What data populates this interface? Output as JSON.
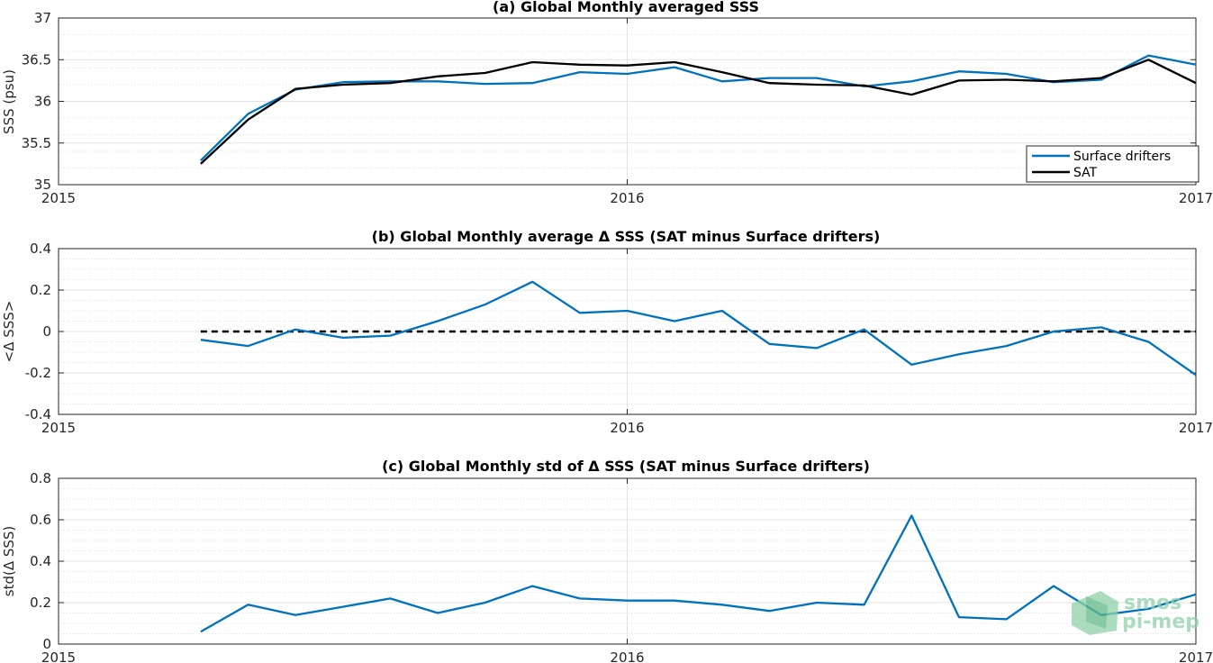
{
  "chart_data": [
    {
      "type": "line",
      "title": "(a) Global Monthly averaged SSS",
      "xlabel": "",
      "ylabel": "SSS (psu)",
      "x_ticks": [
        "2015",
        "2016",
        "2017"
      ],
      "y_ticks": [
        "35",
        "35.5",
        "36",
        "36.5",
        "37"
      ],
      "xlim": [
        "2015-01",
        "2017-01"
      ],
      "ylim": [
        35,
        37
      ],
      "grid": true,
      "legend_position": "bottom-right",
      "x": [
        "2015-04",
        "2015-05",
        "2015-06",
        "2015-07",
        "2015-08",
        "2015-09",
        "2015-10",
        "2015-11",
        "2015-12",
        "2016-01",
        "2016-02",
        "2016-03",
        "2016-04",
        "2016-05",
        "2016-06",
        "2016-07",
        "2016-08",
        "2016-09",
        "2016-10",
        "2016-11",
        "2016-12",
        "2017-01"
      ],
      "series": [
        {
          "name": "Surface drifters",
          "color": "#0072bd",
          "values": [
            35.29,
            35.85,
            36.14,
            36.23,
            36.24,
            36.24,
            36.21,
            36.22,
            36.35,
            36.33,
            36.41,
            36.24,
            36.28,
            36.28,
            36.18,
            36.24,
            36.36,
            36.33,
            36.23,
            36.26,
            36.55,
            36.44
          ]
        },
        {
          "name": "SAT",
          "color": "#000000",
          "values": [
            35.25,
            35.78,
            36.15,
            36.2,
            36.22,
            36.3,
            36.34,
            36.47,
            36.44,
            36.43,
            36.47,
            36.35,
            36.22,
            36.2,
            36.19,
            36.08,
            36.25,
            36.26,
            36.24,
            36.28,
            36.5,
            36.22
          ]
        }
      ]
    },
    {
      "type": "line",
      "title": "(b) Global Monthly average Δ SSS (SAT minus Surface drifters)",
      "xlabel": "",
      "ylabel": "<Δ SSS>",
      "x_ticks": [
        "2015",
        "2016",
        "2017"
      ],
      "y_ticks": [
        "-0.4",
        "-0.2",
        "0",
        "0.2",
        "0.4"
      ],
      "xlim": [
        "2015-01",
        "2017-01"
      ],
      "ylim": [
        -0.4,
        0.4
      ],
      "grid": true,
      "reference_line": {
        "value": 0,
        "style": "dashed",
        "color": "#000000",
        "x_range": [
          "2015-04",
          "2017-01"
        ]
      },
      "x": [
        "2015-04",
        "2015-05",
        "2015-06",
        "2015-07",
        "2015-08",
        "2015-09",
        "2015-10",
        "2015-11",
        "2015-12",
        "2016-01",
        "2016-02",
        "2016-03",
        "2016-04",
        "2016-05",
        "2016-06",
        "2016-07",
        "2016-08",
        "2016-09",
        "2016-10",
        "2016-11",
        "2016-12",
        "2017-01"
      ],
      "series": [
        {
          "name": "",
          "color": "#0072bd",
          "values": [
            -0.04,
            -0.07,
            0.01,
            -0.03,
            -0.02,
            0.05,
            0.13,
            0.24,
            0.09,
            0.1,
            0.05,
            0.1,
            -0.06,
            -0.08,
            0.01,
            -0.16,
            -0.11,
            -0.07,
            0.0,
            0.02,
            -0.05,
            -0.21
          ]
        }
      ]
    },
    {
      "type": "line",
      "title": "(c) Global Monthly std of Δ SSS (SAT minus Surface drifters)",
      "xlabel": "",
      "ylabel": "std(Δ SSS)",
      "x_ticks": [
        "2015",
        "2016",
        "2017"
      ],
      "y_ticks": [
        "0",
        "0.2",
        "0.4",
        "0.6",
        "0.8"
      ],
      "xlim": [
        "2015-01",
        "2017-01"
      ],
      "ylim": [
        0,
        0.8
      ],
      "grid": true,
      "x": [
        "2015-04",
        "2015-05",
        "2015-06",
        "2015-07",
        "2015-08",
        "2015-09",
        "2015-10",
        "2015-11",
        "2015-12",
        "2016-01",
        "2016-02",
        "2016-03",
        "2016-04",
        "2016-05",
        "2016-06",
        "2016-07",
        "2016-08",
        "2016-09",
        "2016-10",
        "2016-11",
        "2016-12",
        "2017-01"
      ],
      "series": [
        {
          "name": "",
          "color": "#0072bd",
          "values": [
            0.06,
            0.19,
            0.14,
            0.18,
            0.22,
            0.15,
            0.2,
            0.28,
            0.22,
            0.21,
            0.21,
            0.19,
            0.16,
            0.2,
            0.19,
            0.62,
            0.13,
            0.12,
            0.28,
            0.14,
            0.17,
            0.24
          ]
        }
      ]
    }
  ],
  "watermark": {
    "line1": "smos",
    "line2": "pi-mep",
    "color": "#8fd1a8"
  }
}
